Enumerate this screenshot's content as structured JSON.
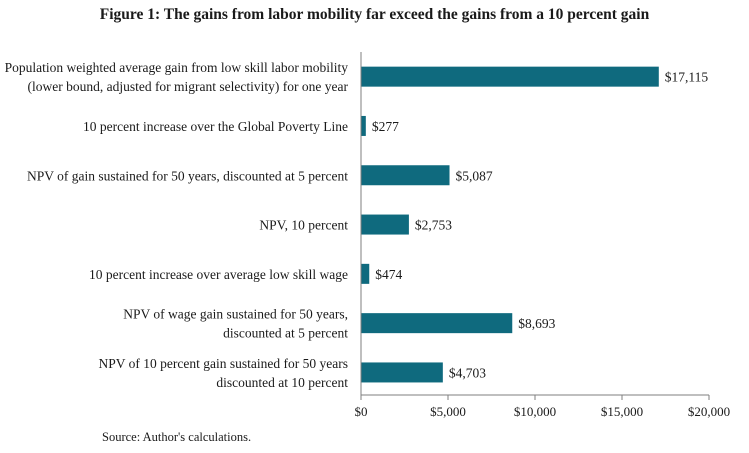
{
  "title": "Figure 1: The gains from labor mobility far exceed the gains from a 10 percent gain",
  "source": "Source: Author's calculations.",
  "colors": {
    "bar": "#0f6a7e",
    "axis": "#7f7f7f"
  },
  "chart_data": {
    "type": "bar",
    "orientation": "horizontal",
    "title": "Figure 1: The gains from labor mobility far exceed the gains from a 10 percent gain",
    "xlabel": "",
    "ylabel": "",
    "xlim": [
      0,
      20000
    ],
    "xticks": [
      0,
      5000,
      10000,
      15000,
      20000
    ],
    "xtick_labels": [
      "$0",
      "$5,000",
      "$10,000",
      "$15,000",
      "$20,000"
    ],
    "categories": [
      [
        "Population weighted average gain from low skill labor mobility",
        "(lower bound, adjusted for migrant selectivity) for one year"
      ],
      [
        "10 percent increase over the Global Poverty Line"
      ],
      [
        "NPV of gain sustained for 50 years, discounted at 5 percent"
      ],
      [
        "NPV, 10 percent"
      ],
      [
        "10 percent increase over average low skill wage"
      ],
      [
        "NPV of wage gain sustained for 50 years,",
        "discounted at 5 percent"
      ],
      [
        "NPV of 10 percent gain sustained for 50 years",
        "discounted at 10 percent"
      ]
    ],
    "values": [
      17115,
      277,
      5087,
      2753,
      474,
      8693,
      4703
    ],
    "value_labels": [
      "$17,115",
      "$277",
      "$5,087",
      "$2,753",
      "$474",
      "$8,693",
      "$4,703"
    ],
    "grid": false,
    "legend": "none"
  }
}
